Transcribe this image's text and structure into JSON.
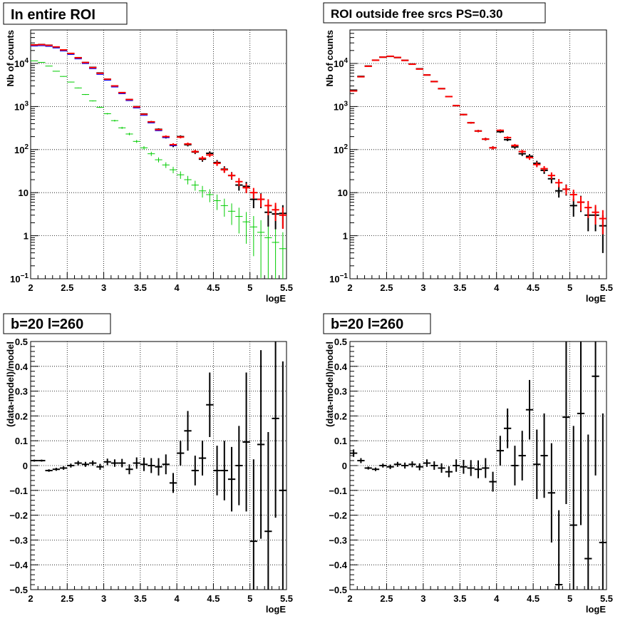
{
  "chart_data": [
    {
      "type": "scatter",
      "title": "In entire ROI",
      "xlabel": "logE",
      "ylabel": "Nb of counts",
      "xlim": [
        2,
        5.5
      ],
      "ylim": [
        0.1,
        60000
      ],
      "yscale": "log",
      "grid": true,
      "x_ticks": [
        "2",
        "2.5",
        "3",
        "3.5",
        "4",
        "4.5",
        "5",
        "5.5"
      ],
      "y_ticks": [
        {
          "value": 0.1,
          "base": "10",
          "exp": "−1"
        },
        {
          "value": 1,
          "text": "1"
        },
        {
          "value": 10,
          "text": "10"
        },
        {
          "value": 100,
          "base": "10",
          "exp": "2"
        },
        {
          "value": 1000,
          "base": "10",
          "exp": "3"
        },
        {
          "value": 10000,
          "base": "10",
          "exp": "4"
        }
      ],
      "colors": {
        "data": "#000000",
        "model": "#ff0000",
        "model_blue": "#0000ff",
        "component": "#00cc00"
      },
      "x": [
        2.05,
        2.15,
        2.25,
        2.35,
        2.45,
        2.55,
        2.65,
        2.75,
        2.85,
        2.95,
        3.05,
        3.15,
        3.25,
        3.35,
        3.45,
        3.55,
        3.65,
        3.75,
        3.85,
        3.95,
        4.05,
        4.15,
        4.25,
        4.35,
        4.45,
        4.55,
        4.65,
        4.75,
        4.85,
        4.95,
        5.05,
        5.15,
        5.25,
        5.35,
        5.45
      ],
      "series": [
        {
          "role": "data",
          "values": [
            27000,
            27500,
            26500,
            24000,
            20500,
            17000,
            13600,
            10500,
            8100,
            6000,
            4300,
            3000,
            2100,
            1450,
            990,
            670,
            440,
            295,
            195,
            125,
            200,
            130,
            88,
            60,
            82,
            50,
            35,
            25,
            15,
            14,
            7,
            7,
            3.5,
            3.2,
            3.3
          ]
        },
        {
          "role": "model",
          "values": [
            26800,
            27300,
            26300,
            24200,
            20600,
            17100,
            13500,
            10500,
            8000,
            5900,
            4300,
            3000,
            2100,
            1450,
            980,
            660,
            440,
            290,
            200,
            130,
            195,
            135,
            90,
            63,
            75,
            48,
            34,
            25,
            18,
            13,
            10,
            7,
            5,
            4,
            3
          ]
        },
        {
          "role": "component",
          "values": [
            11500,
            10600,
            8700,
            6600,
            5000,
            3700,
            2700,
            1900,
            1350,
            960,
            680,
            470,
            320,
            230,
            155,
            110,
            80,
            58,
            44,
            34,
            26,
            20,
            15,
            11,
            9,
            6.5,
            5,
            3.7,
            2.8,
            2.1,
            1.6,
            1.2,
            0.9,
            0.7,
            0.5
          ]
        }
      ]
    },
    {
      "type": "scatter",
      "title": "ROI outside free srcs PS=0.30",
      "xlabel": "logE",
      "ylabel": "Nb of counts",
      "xlim": [
        2,
        5.5
      ],
      "ylim": [
        0.1,
        60000
      ],
      "yscale": "log",
      "grid": true,
      "x_ticks": [
        "2",
        "2.5",
        "3",
        "3.5",
        "4",
        "4.5",
        "5",
        "5.5"
      ],
      "y_ticks": [
        {
          "value": 0.1,
          "base": "10",
          "exp": "−1"
        },
        {
          "value": 1,
          "text": "1"
        },
        {
          "value": 10,
          "text": "10"
        },
        {
          "value": 100,
          "base": "10",
          "exp": "2"
        },
        {
          "value": 1000,
          "base": "10",
          "exp": "3"
        },
        {
          "value": 10000,
          "base": "10",
          "exp": "4"
        }
      ],
      "colors": {
        "data": "#000000",
        "model": "#ff0000"
      },
      "x": [
        2.05,
        2.15,
        2.25,
        2.35,
        2.45,
        2.55,
        2.65,
        2.75,
        2.85,
        2.95,
        3.05,
        3.15,
        3.25,
        3.35,
        3.45,
        3.55,
        3.65,
        3.75,
        3.85,
        3.95,
        4.05,
        4.15,
        4.25,
        4.35,
        4.45,
        4.55,
        4.65,
        4.75,
        4.85,
        4.95,
        5.05,
        5.15,
        5.25,
        5.35,
        5.45
      ],
      "series": [
        {
          "role": "data",
          "values": [
            2400,
            5000,
            8700,
            11900,
            14000,
            14600,
            13700,
            11800,
            9700,
            7500,
            5400,
            3800,
            2600,
            1700,
            1050,
            650,
            420,
            270,
            175,
            110,
            260,
            170,
            115,
            80,
            70,
            48,
            33,
            21,
            11,
            12,
            5,
            6,
            3,
            3,
            1.7
          ]
        },
        {
          "role": "model",
          "values": [
            2300,
            4900,
            8600,
            11900,
            14000,
            14700,
            13800,
            11800,
            9600,
            7400,
            5400,
            3800,
            2600,
            1700,
            1050,
            650,
            420,
            270,
            175,
            110,
            280,
            190,
            125,
            90,
            65,
            45,
            36,
            25,
            17,
            12,
            9,
            6,
            4.5,
            3.5,
            2.5
          ]
        }
      ]
    },
    {
      "type": "scatter",
      "title": "b=20 l=260",
      "xlabel": "logE",
      "ylabel": "(data-model)/model",
      "xlim": [
        2,
        5.5
      ],
      "ylim": [
        -0.5,
        0.5
      ],
      "grid": true,
      "x_ticks": [
        "2",
        "2.5",
        "3",
        "3.5",
        "4",
        "4.5",
        "5",
        "5.5"
      ],
      "y_ticks": [
        "−0.5",
        "−0.4",
        "−0.3",
        "−0.2",
        "−0.1",
        "0",
        "0.1",
        "0.2",
        "0.3",
        "0.4",
        "0.5"
      ],
      "x": [
        2.05,
        2.15,
        2.25,
        2.35,
        2.45,
        2.55,
        2.65,
        2.75,
        2.85,
        2.95,
        3.05,
        3.15,
        3.25,
        3.35,
        3.45,
        3.55,
        3.65,
        3.75,
        3.85,
        3.95,
        4.05,
        4.15,
        4.25,
        4.35,
        4.45,
        4.55,
        4.65,
        4.75,
        4.85,
        4.95,
        5.05,
        5.15,
        5.25,
        5.35,
        5.45
      ],
      "values": [
        0.02,
        0.02,
        -0.02,
        -0.015,
        -0.01,
        0.0,
        0.01,
        0.005,
        0.01,
        -0.005,
        0.015,
        0.01,
        0.01,
        -0.015,
        0.01,
        0.005,
        0.0,
        -0.005,
        0.005,
        -0.07,
        0.05,
        0.14,
        -0.02,
        0.03,
        0.245,
        -0.02,
        -0.02,
        -0.055,
        0.0,
        0.095,
        -0.305,
        0.085,
        -0.265,
        0.19,
        -0.1
      ],
      "errors": [
        0.004,
        0.004,
        0.005,
        0.006,
        0.007,
        0.008,
        0.009,
        0.01,
        0.01,
        0.012,
        0.013,
        0.015,
        0.017,
        0.02,
        0.023,
        0.027,
        0.03,
        0.035,
        0.04,
        0.04,
        0.05,
        0.08,
        0.06,
        0.07,
        0.13,
        0.1,
        0.12,
        0.13,
        0.16,
        0.28,
        0.33,
        0.38,
        0.4,
        0.4,
        0.52
      ]
    },
    {
      "type": "scatter",
      "title": "b=20 l=260",
      "xlabel": "logE",
      "ylabel": "(data-model)/model",
      "xlim": [
        2,
        5.5
      ],
      "ylim": [
        -0.5,
        0.5
      ],
      "grid": true,
      "x_ticks": [
        "2",
        "2.5",
        "3",
        "3.5",
        "4",
        "4.5",
        "5",
        "5.5"
      ],
      "y_ticks": [
        "−0.5",
        "−0.4",
        "−0.3",
        "−0.2",
        "−0.1",
        "0",
        "0.1",
        "0.2",
        "0.3",
        "0.4",
        "0.5"
      ],
      "x": [
        2.05,
        2.15,
        2.25,
        2.35,
        2.45,
        2.55,
        2.65,
        2.75,
        2.85,
        2.95,
        3.05,
        3.15,
        3.25,
        3.35,
        3.45,
        3.55,
        3.65,
        3.75,
        3.85,
        3.95,
        4.05,
        4.15,
        4.25,
        4.35,
        4.45,
        4.55,
        4.65,
        4.75,
        4.85,
        4.95,
        5.05,
        5.15,
        5.25,
        5.35,
        5.45
      ],
      "values": [
        0.05,
        0.02,
        -0.01,
        -0.015,
        0.0,
        -0.005,
        0.005,
        0.0,
        0.005,
        -0.005,
        0.01,
        0.0,
        -0.01,
        -0.025,
        0.0,
        -0.005,
        -0.01,
        -0.015,
        -0.01,
        -0.065,
        0.06,
        0.15,
        0.0,
        0.04,
        0.225,
        0.005,
        0.04,
        -0.11,
        -0.48,
        0.195,
        -0.24,
        0.21,
        -0.375,
        0.36,
        -0.31
      ],
      "errors": [
        0.015,
        0.01,
        0.006,
        0.007,
        0.008,
        0.009,
        0.01,
        0.012,
        0.012,
        0.014,
        0.015,
        0.017,
        0.019,
        0.022,
        0.025,
        0.028,
        0.032,
        0.036,
        0.04,
        0.04,
        0.06,
        0.08,
        0.08,
        0.1,
        0.12,
        0.14,
        0.17,
        0.2,
        0.3,
        0.35,
        0.4,
        0.45,
        0.5,
        0.4,
        0.52
      ]
    }
  ]
}
